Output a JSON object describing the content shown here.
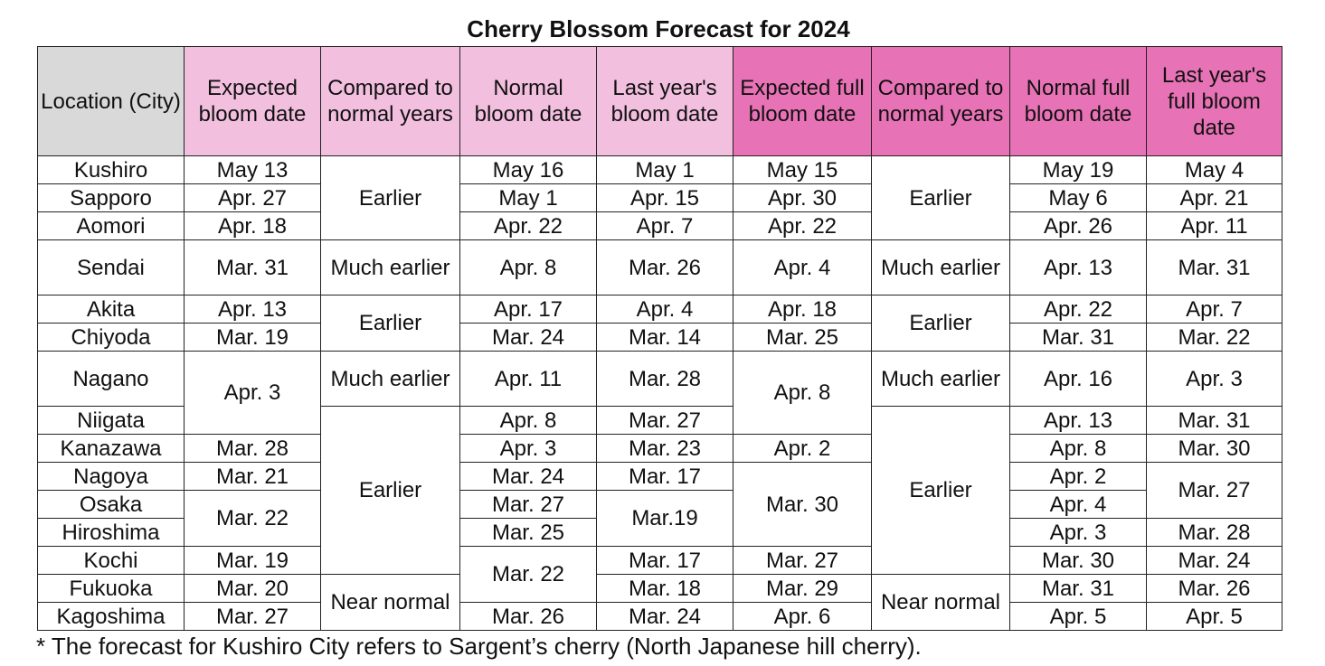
{
  "title": "Cherry Blossom Forecast for 2024",
  "colors": {
    "location_header": "#d9d9d9",
    "bloom_header": "#f2bfdf",
    "full_bloom_header": "#e872b6",
    "border": "#222222"
  },
  "headers": [
    "Location (City)",
    "Expected bloom date",
    "Compared to normal years",
    "Normal bloom date",
    "Last year's bloom date",
    "Expected full bloom date",
    "Compared to normal years",
    "Normal full bloom date",
    "Last year's full bloom date"
  ],
  "cities": [
    "Kushiro",
    "Sapporo",
    "Aomori",
    "Sendai",
    "Akita",
    "Chiyoda",
    "Nagano",
    "Niigata",
    "Kanazawa",
    "Nagoya",
    "Osaka",
    "Hiroshima",
    "Kochi",
    "Fukuoka",
    "Kagoshima"
  ],
  "expected_bloom": {
    "kushiro": "May 13",
    "sapporo": "Apr. 27",
    "aomori": "Apr. 18",
    "sendai": "Mar. 31",
    "akita": "Apr. 13",
    "chiyoda": "Mar. 19",
    "nagano_niigata": "Apr. 3",
    "kanazawa": "Mar. 28",
    "nagoya": "Mar. 21",
    "osaka_hiroshima": "Mar. 22",
    "kochi": "Mar. 19",
    "fukuoka": "Mar. 20",
    "kagoshima": "Mar. 27"
  },
  "bloom_compared": {
    "g1": "Earlier",
    "g2": "Much earlier",
    "g3": "Earlier",
    "g4": "Much earlier",
    "g5": "Earlier",
    "g6": "Near normal"
  },
  "normal_bloom": {
    "kushiro": "May 16",
    "sapporo": "May 1",
    "aomori": "Apr. 22",
    "sendai": "Apr. 8",
    "akita": "Apr. 17",
    "chiyoda": "Mar. 24",
    "nagano": "Apr. 11",
    "niigata": "Apr. 8",
    "kanazawa": "Apr. 3",
    "nagoya": "Mar. 24",
    "osaka": "Mar. 27",
    "hiroshima": "Mar. 25",
    "kochi_fukuoka": "Mar. 22",
    "kagoshima": "Mar. 26"
  },
  "last_year_bloom": {
    "kushiro": "May 1",
    "sapporo": "Apr. 15",
    "aomori": "Apr. 7",
    "sendai": "Mar. 26",
    "akita": "Apr. 4",
    "chiyoda": "Mar. 14",
    "nagano": "Mar. 28",
    "niigata": "Mar. 27",
    "kanazawa": "Mar. 23",
    "nagoya": "Mar. 17",
    "osaka_hiroshima": "Mar.19",
    "kochi": "Mar. 17",
    "fukuoka": "Mar. 18",
    "kagoshima": "Mar. 24"
  },
  "expected_full_bloom": {
    "kushiro": "May 15",
    "sapporo": "Apr. 30",
    "aomori": "Apr. 22",
    "sendai": "Apr. 4",
    "akita": "Apr. 18",
    "chiyoda": "Mar. 25",
    "nagano_niigata": "Apr. 8",
    "kanazawa": "Apr. 2",
    "nagoya_osaka_hiroshima": "Mar. 30",
    "kochi": "Mar. 27",
    "fukuoka": "Mar. 29",
    "kagoshima": "Apr. 6"
  },
  "full_bloom_compared": {
    "g1": "Earlier",
    "g2": "Much earlier",
    "g3": "Earlier",
    "g4": "Much earlier",
    "g5": "Earlier",
    "g6": "Near normal"
  },
  "normal_full_bloom": {
    "kushiro": "May 19",
    "sapporo": "May 6",
    "aomori": "Apr. 26",
    "sendai": "Apr. 13",
    "akita": "Apr. 22",
    "chiyoda": "Mar. 31",
    "nagano": "Apr. 16",
    "niigata": "Apr. 13",
    "kanazawa": "Apr. 8",
    "nagoya": "Apr. 2",
    "osaka": "Apr. 4",
    "hiroshima": "Apr. 3",
    "kochi": "Mar. 30",
    "fukuoka": "Mar. 31",
    "kagoshima": "Apr. 5"
  },
  "last_year_full_bloom": {
    "kushiro": "May 4",
    "sapporo": "Apr. 21",
    "aomori": "Apr. 11",
    "sendai": "Mar. 31",
    "akita": "Apr. 7",
    "chiyoda": "Mar. 22",
    "nagano": "Apr. 3",
    "niigata": "Mar. 31",
    "kanazawa": "Mar. 30",
    "nagoya_osaka": "Mar. 27",
    "hiroshima": "Mar. 28",
    "kochi": "Mar. 24",
    "fukuoka": "Mar. 26",
    "kagoshima": "Apr. 5"
  },
  "footnote": "* The forecast for Kushiro City refers to Sargent’s cherry (North Japanese hill cherry)."
}
